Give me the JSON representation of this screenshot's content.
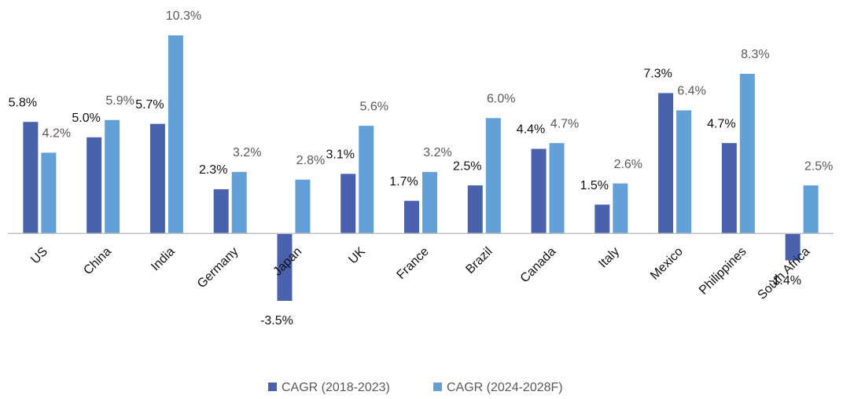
{
  "chart_data": {
    "type": "bar",
    "categories": [
      "US",
      "China",
      "India",
      "Germany",
      "Japan",
      "UK",
      "France",
      "Brazil",
      "Canada",
      "Italy",
      "Mexico",
      "Philippines",
      "South Africa"
    ],
    "series": [
      {
        "name": "CAGR (2018-2023)",
        "color": "#4a62ad",
        "values": [
          5.8,
          5.0,
          5.7,
          2.3,
          -3.5,
          3.1,
          1.7,
          2.5,
          4.4,
          1.5,
          7.3,
          4.7,
          -1.4
        ],
        "value_labels": [
          "5.8%",
          "5.0%",
          "5.7%",
          "2.3%",
          "-3.5%",
          "3.1%",
          "1.7%",
          "2.5%",
          "4.4%",
          "1.5%",
          "7.3%",
          "4.7%",
          "-1.4%"
        ]
      },
      {
        "name": "CAGR (2024-2028F)",
        "color": "#64a0d8",
        "values": [
          4.2,
          5.9,
          10.3,
          3.2,
          2.8,
          5.6,
          3.2,
          6.0,
          4.7,
          2.6,
          6.4,
          8.3,
          2.5
        ],
        "value_labels": [
          "4.2%",
          "5.9%",
          "10.3%",
          "3.2%",
          "2.8%",
          "5.6%",
          "3.2%",
          "6.0%",
          "4.7%",
          "2.6%",
          "6.4%",
          "8.3%",
          "2.5%"
        ]
      }
    ],
    "legend": "bottom"
  }
}
